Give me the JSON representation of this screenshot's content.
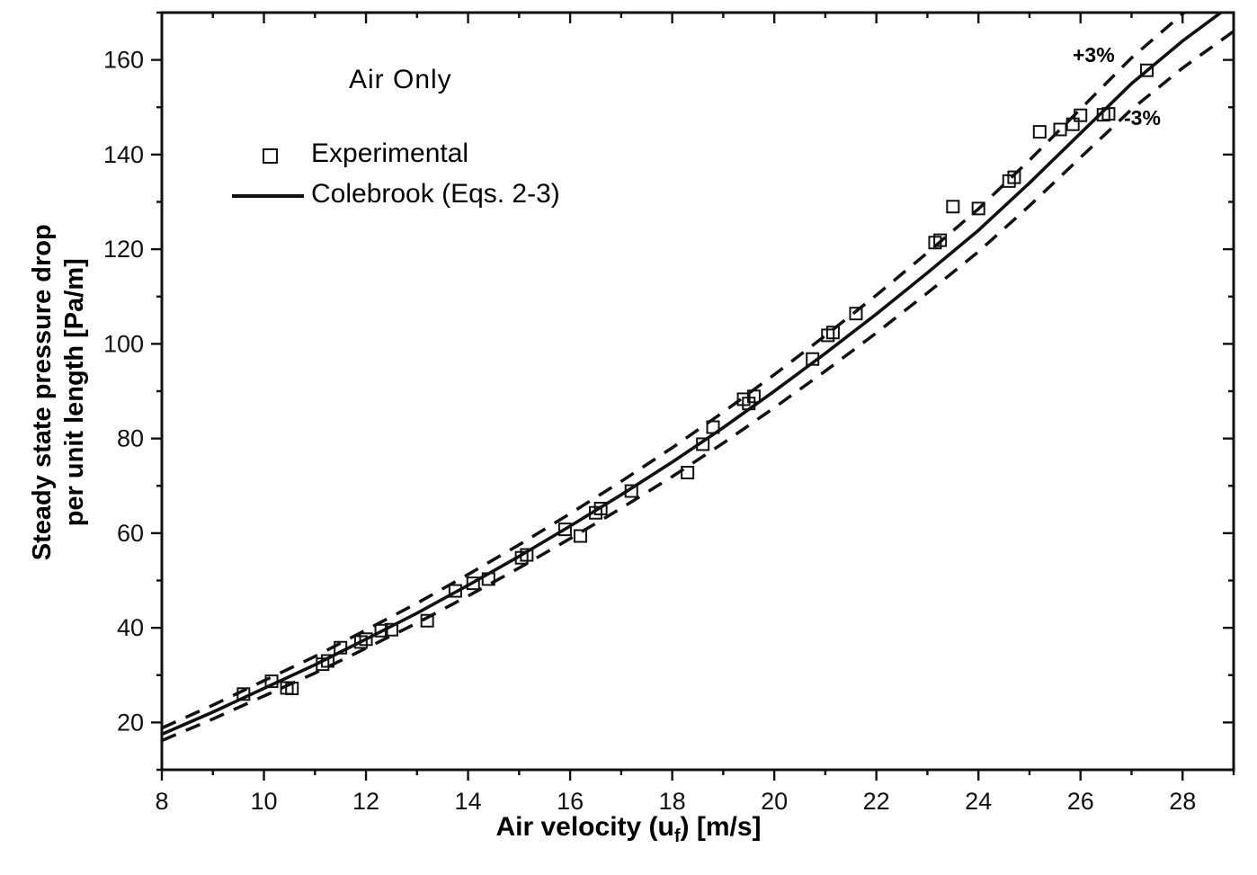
{
  "chart_data": {
    "type": "scatter",
    "title": "Air Only",
    "xlabel": "Air velocity (u_f) [m/s]",
    "xlabel_parts": {
      "prefix": "Air velocity (u",
      "sub": "f",
      "suffix": ") [m/s]"
    },
    "ylabel": "Steady state pressure drop per unit length [Pa/m]",
    "ylabel_lines": [
      "Steady state pressure drop",
      "per unit length [Pa/m]"
    ],
    "xlim": [
      8,
      29
    ],
    "ylim": [
      10,
      170
    ],
    "xticks": [
      8,
      10,
      12,
      14,
      16,
      18,
      20,
      22,
      24,
      26,
      28
    ],
    "yticks": [
      20,
      40,
      60,
      80,
      100,
      120,
      140,
      160
    ],
    "x_minor_step": 1,
    "y_minor_step": 10,
    "grid": "off",
    "legend_position": "upper-left-inside",
    "colors": {
      "axis": "#111111",
      "series": "#111111",
      "background": "#ffffff"
    },
    "series": [
      {
        "name": "Experimental",
        "type": "scatter",
        "marker": "open-square",
        "points": [
          [
            9.6,
            26.0
          ],
          [
            10.15,
            28.7
          ],
          [
            10.45,
            27.3
          ],
          [
            10.55,
            27.2
          ],
          [
            11.15,
            32.3
          ],
          [
            11.25,
            33.0
          ],
          [
            11.5,
            35.8
          ],
          [
            11.9,
            37.0
          ],
          [
            12.0,
            37.6
          ],
          [
            12.3,
            39.4
          ],
          [
            12.5,
            39.6
          ],
          [
            13.2,
            41.5
          ],
          [
            13.75,
            47.8
          ],
          [
            14.1,
            49.4
          ],
          [
            14.4,
            50.3
          ],
          [
            15.05,
            54.8
          ],
          [
            15.15,
            55.4
          ],
          [
            15.9,
            60.8
          ],
          [
            16.2,
            59.4
          ],
          [
            16.5,
            64.3
          ],
          [
            16.6,
            65.2
          ],
          [
            17.2,
            68.9
          ],
          [
            18.3,
            72.8
          ],
          [
            18.6,
            78.8
          ],
          [
            18.8,
            82.4
          ],
          [
            19.4,
            88.3
          ],
          [
            19.5,
            87.4
          ],
          [
            19.6,
            88.9
          ],
          [
            20.75,
            96.8
          ],
          [
            21.05,
            101.8
          ],
          [
            21.15,
            102.4
          ],
          [
            21.6,
            106.4
          ],
          [
            23.15,
            121.4
          ],
          [
            23.25,
            121.9
          ],
          [
            23.5,
            129.0
          ],
          [
            24.0,
            128.6
          ],
          [
            24.6,
            134.4
          ],
          [
            24.7,
            135.2
          ],
          [
            25.2,
            144.8
          ],
          [
            25.6,
            145.3
          ],
          [
            25.85,
            146.4
          ],
          [
            26.0,
            148.3
          ],
          [
            26.45,
            148.4
          ],
          [
            26.55,
            148.6
          ],
          [
            27.3,
            157.8
          ]
        ]
      },
      {
        "name": "Colebrook (Eqs. 2-3)",
        "type": "line",
        "x": [
          8,
          9,
          10,
          11,
          12,
          13,
          14,
          15,
          16,
          17,
          18,
          19,
          20,
          21,
          22,
          23,
          24,
          25,
          26,
          27,
          28,
          29
        ],
        "y": [
          17.5,
          22.2,
          27.2,
          32.2,
          37.6,
          43.1,
          49.0,
          55.1,
          61.5,
          68.1,
          75.0,
          82.3,
          90.0,
          98.0,
          106.3,
          115.0,
          124.0,
          134.0,
          144.5,
          155.0,
          164.0,
          172.0
        ]
      }
    ],
    "bands": {
      "upper_factor": 1.03,
      "lower_factor": 0.97,
      "extra_offset": 0.8,
      "upper_label": "+3%",
      "lower_label": "-3%"
    }
  }
}
